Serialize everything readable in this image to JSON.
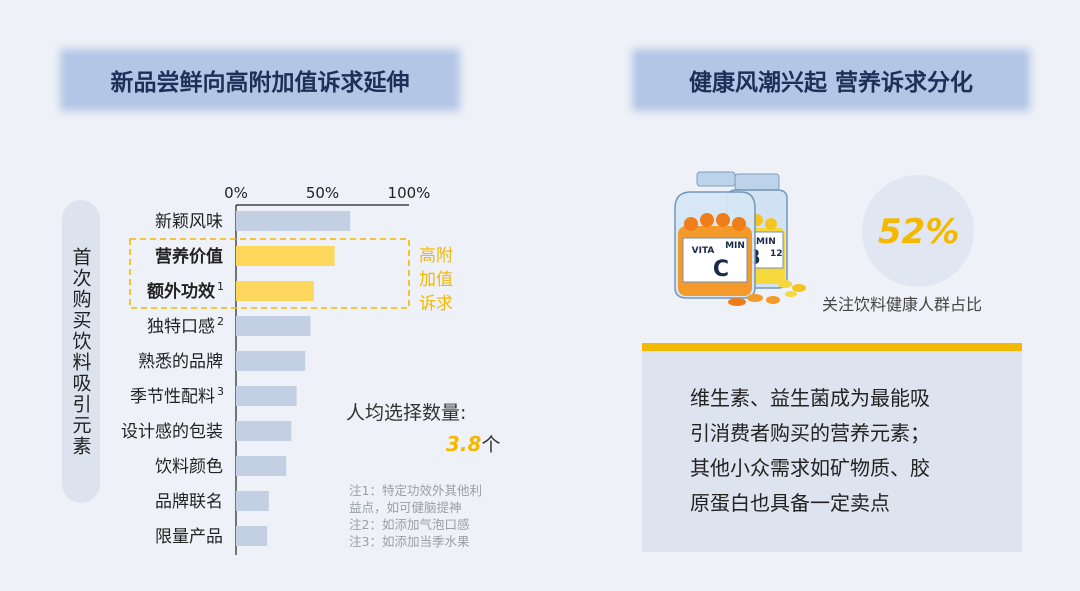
{
  "left_panel": {
    "title": "新品尝鲜向高附加值诉求延伸",
    "y_axis_title": "首次购买饮料吸引元素",
    "highlight_label": "高附加值诉求",
    "avg_label": "人均选择数量:",
    "avg_value": "3.8",
    "avg_unit": "个",
    "notes": [
      "注1：特定功效外其他利",
      "益点，如可健脑提神",
      "注2：如添加气泡口感",
      "注3：如添加当季水果"
    ]
  },
  "chart_data": {
    "type": "bar",
    "orientation": "horizontal",
    "categories": [
      "新颖风味",
      "营养价值",
      "额外功效",
      "独特口感",
      "熟悉的品牌",
      "季节性配料",
      "设计感的包装",
      "饮料颜色",
      "品牌联名",
      "限量产品"
    ],
    "category_superscripts": [
      "",
      "",
      "1",
      "2",
      "",
      "3",
      "",
      "",
      "",
      ""
    ],
    "values": [
      66,
      57,
      45,
      43,
      40,
      35,
      32,
      29,
      19,
      18
    ],
    "highlighted": [
      false,
      true,
      true,
      false,
      false,
      false,
      false,
      false,
      false,
      false
    ],
    "x_ticks": [
      "0%",
      "50%",
      "100%"
    ],
    "xlim": [
      0,
      100
    ],
    "colors": {
      "default": "#c3cfe2",
      "highlight": "#fdd85c",
      "highlight_border": "#f5b800"
    }
  },
  "right_panel": {
    "title": "健康风潮兴起 营养诉求分化",
    "stat_value": "52%",
    "stat_caption": "关注饮料健康人群占比",
    "bottle_labels": {
      "left_top": "VITA",
      "left_mid": "MIN",
      "left_letter": "C",
      "right_top": "ITAMIN",
      "right_letter": "B",
      "right_sub": "12"
    },
    "callout_lines": [
      "维生素、益生菌成为最能吸",
      "引消费者购买的营养元素；",
      "其他小众需求如矿物质、胶",
      "原蛋白也具备一定卖点"
    ]
  }
}
